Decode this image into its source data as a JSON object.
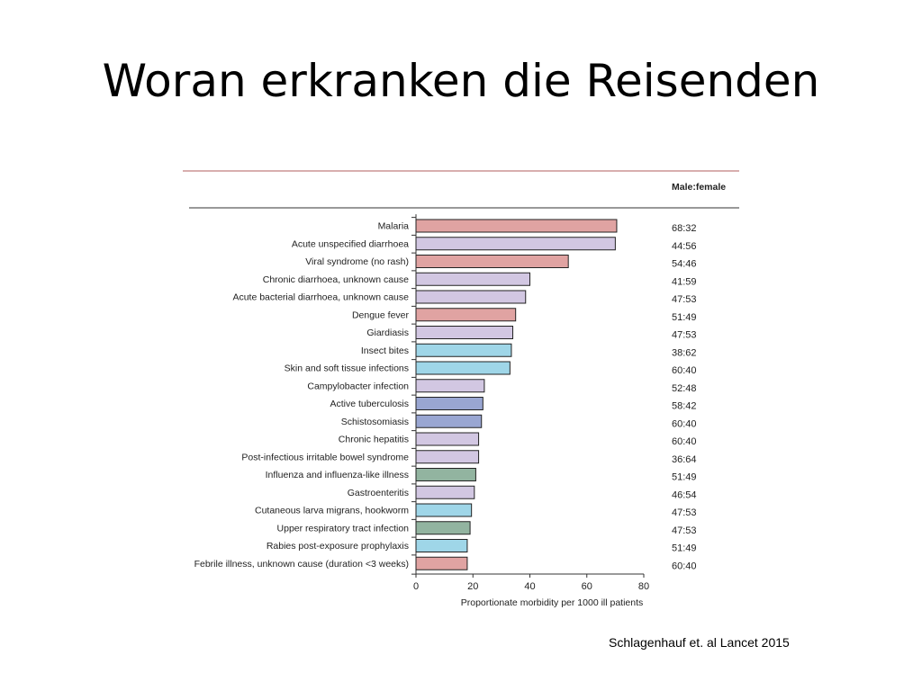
{
  "slide": {
    "title": "Woran erkranken die Reisenden",
    "citation": "Schlagenhauf et. al Lancet 2015"
  },
  "colors": {
    "red": "#e0a3a2",
    "lavender": "#d2c7e2",
    "cyan": "#9fd6e8",
    "blue": "#99a6d2",
    "green": "#92b4a0",
    "outline": "#222222",
    "rule_red": "#b05c5c"
  },
  "chart_data": {
    "type": "bar",
    "orientation": "horizontal",
    "header_label": "Male:female",
    "xlabel": "Proportionate morbidity per 1000 ill patients",
    "xlim": [
      0,
      80
    ],
    "xticks": [
      0,
      20,
      40,
      60,
      80
    ],
    "grid": false,
    "categories": [
      "Malaria",
      "Acute unspecified diarrhoea",
      "Viral syndrome (no rash)",
      "Chronic diarrhoea, unknown cause",
      "Acute bacterial diarrhoea, unknown cause",
      "Dengue fever",
      "Giardiasis",
      "Insect bites",
      "Skin and soft tissue infections",
      "Campylobacter infection",
      "Active tuberculosis",
      "Schistosomiasis",
      "Chronic hepatitis",
      "Post-infectious irritable bowel syndrome",
      "Influenza and influenza-like illness",
      "Gastroenteritis",
      "Cutaneous larva migrans, hookworm",
      "Upper respiratory tract infection",
      "Rabies post-exposure prophylaxis",
      "Febrile illness, unknown cause (duration <3 weeks)"
    ],
    "values": [
      70.5,
      70,
      53.5,
      40,
      38.5,
      35,
      34,
      33.5,
      33,
      24,
      23.5,
      23,
      22,
      22,
      21,
      20.5,
      19.5,
      19,
      18,
      18
    ],
    "bar_colors": [
      "red",
      "lavender",
      "red",
      "lavender",
      "lavender",
      "red",
      "lavender",
      "cyan",
      "cyan",
      "lavender",
      "blue",
      "blue",
      "lavender",
      "lavender",
      "green",
      "lavender",
      "cyan",
      "green",
      "cyan",
      "red"
    ],
    "ratios": [
      "68:32",
      "44:56",
      "54:46",
      "41:59",
      "47:53",
      "51:49",
      "47:53",
      "38:62",
      "60:40",
      "52:48",
      "58:42",
      "60:40",
      "60:40",
      "36:64",
      "51:49",
      "46:54",
      "47:53",
      "47:53",
      "51:49",
      "60:40"
    ]
  }
}
